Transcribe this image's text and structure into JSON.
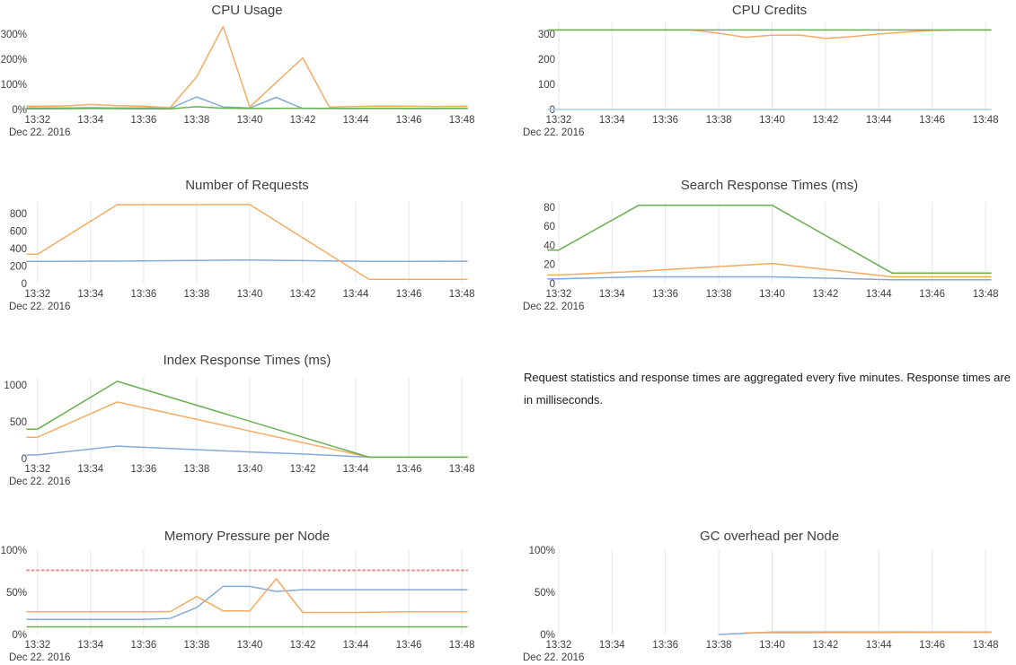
{
  "page": {
    "background": "#ffffff"
  },
  "colors": {
    "blue": "#87a8d6",
    "light_blue": "#aacee8",
    "orange": "#f5ab62",
    "green": "#68b052",
    "red_dashed": "#f28b8b",
    "grid": "#e6e6e6",
    "tick_text": "#3d3d3d",
    "title_text": "#3e3e3e"
  },
  "note": {
    "text": "Request statistics and response times are aggregated every five minutes. Response times are in milliseconds."
  },
  "x_axis": {
    "min": -0.4,
    "max": 16.2,
    "tick_values": [
      0,
      2,
      4,
      6,
      8,
      10,
      12,
      14,
      16
    ],
    "tick_labels": [
      "13:32",
      "13:34",
      "13:36",
      "13:38",
      "13:40",
      "13:42",
      "13:44",
      "13:46",
      "13:48"
    ],
    "date_label": "Dec 22. 2016"
  },
  "chart_data": [
    {
      "type": "line",
      "title": "CPU Usage",
      "grid": false,
      "ylim": [
        0,
        346
      ],
      "yticks": [
        {
          "value": 0,
          "label": "0%"
        },
        {
          "value": 100,
          "label": "100%"
        },
        {
          "value": 200,
          "label": "200%"
        },
        {
          "value": 300,
          "label": "300%"
        }
      ],
      "series": [
        {
          "name": "blue",
          "color": "#87a8d6",
          "points": [
            [
              0,
              6
            ],
            [
              1,
              6
            ],
            [
              2,
              7
            ],
            [
              3,
              6
            ],
            [
              4,
              6
            ],
            [
              5,
              4
            ],
            [
              6,
              50
            ],
            [
              7,
              10
            ],
            [
              8,
              6
            ],
            [
              9,
              48
            ],
            [
              10,
              4
            ],
            [
              11,
              4
            ],
            [
              12,
              4
            ],
            [
              13,
              5
            ],
            [
              14,
              4
            ],
            [
              15,
              4
            ],
            [
              16,
              5
            ]
          ]
        },
        {
          "name": "orange",
          "color": "#f5ab62",
          "points": [
            [
              0,
              13
            ],
            [
              1,
              14
            ],
            [
              2,
              20
            ],
            [
              3,
              15
            ],
            [
              4,
              13
            ],
            [
              5,
              7
            ],
            [
              6,
              130
            ],
            [
              7,
              330
            ],
            [
              8,
              10
            ],
            [
              10,
              205
            ],
            [
              11,
              10
            ],
            [
              12,
              12
            ],
            [
              13,
              14
            ],
            [
              14,
              13
            ],
            [
              15,
              12
            ],
            [
              16,
              13
            ]
          ]
        },
        {
          "name": "green",
          "color": "#68b052",
          "points": [
            [
              0,
              3
            ],
            [
              2,
              4
            ],
            [
              4,
              3
            ],
            [
              5,
              3
            ],
            [
              6,
              11
            ],
            [
              7,
              5
            ],
            [
              8,
              4
            ],
            [
              10,
              5
            ],
            [
              12,
              4
            ],
            [
              14,
              4
            ],
            [
              16,
              4
            ]
          ]
        }
      ]
    },
    {
      "type": "line",
      "title": "CPU Credits",
      "grid": true,
      "ylim": [
        0,
        346
      ],
      "yticks": [
        {
          "value": 0,
          "label": "0"
        },
        {
          "value": 100,
          "label": "100"
        },
        {
          "value": 200,
          "label": "200"
        },
        {
          "value": 300,
          "label": "300"
        }
      ],
      "series": [
        {
          "name": "light-blue",
          "color": "#aacee8",
          "points": [
            [
              0,
              0
            ],
            [
              16,
              0
            ]
          ]
        },
        {
          "name": "orange",
          "color": "#f5ab62",
          "points": [
            [
              0,
              316
            ],
            [
              5,
              316
            ],
            [
              6,
              303
            ],
            [
              7,
              287
            ],
            [
              8,
              295
            ],
            [
              9,
              296
            ],
            [
              10,
              283
            ],
            [
              11,
              290
            ],
            [
              12,
              300
            ],
            [
              13,
              308
            ],
            [
              14,
              314
            ],
            [
              15,
              316
            ],
            [
              16,
              316
            ]
          ]
        },
        {
          "name": "green",
          "color": "#68b052",
          "points": [
            [
              0,
              316
            ],
            [
              16,
              316
            ]
          ]
        }
      ]
    },
    {
      "type": "line",
      "title": "Number of Requests",
      "grid": true,
      "ylim": [
        0,
        935
      ],
      "yticks": [
        {
          "value": 0,
          "label": "0"
        },
        {
          "value": 200,
          "label": "200"
        },
        {
          "value": 400,
          "label": "400"
        },
        {
          "value": 600,
          "label": "600"
        },
        {
          "value": 800,
          "label": "800"
        }
      ],
      "series": [
        {
          "name": "blue",
          "color": "#87a8d6",
          "points": [
            [
              0,
              255
            ],
            [
              3,
              257
            ],
            [
              8,
              270
            ],
            [
              10,
              263
            ],
            [
              12.5,
              254
            ],
            [
              16,
              256
            ]
          ]
        },
        {
          "name": "orange",
          "color": "#f5ab62",
          "points": [
            [
              0,
              335
            ],
            [
              3,
              903
            ],
            [
              8,
              905
            ],
            [
              12.5,
              48
            ],
            [
              16,
              48
            ]
          ]
        }
      ]
    },
    {
      "type": "line",
      "title": "Search Response Times (ms)",
      "grid": true,
      "ylim": [
        0,
        85.5
      ],
      "yticks": [
        {
          "value": 0,
          "label": "0"
        },
        {
          "value": 20,
          "label": "20"
        },
        {
          "value": 40,
          "label": "40"
        },
        {
          "value": 60,
          "label": "60"
        },
        {
          "value": 80,
          "label": "80"
        }
      ],
      "series": [
        {
          "name": "blue",
          "color": "#87a8d6",
          "points": [
            [
              0,
              5
            ],
            [
              3,
              7
            ],
            [
              8,
              7
            ],
            [
              12.5,
              4
            ],
            [
              16,
              4
            ]
          ]
        },
        {
          "name": "orange",
          "color": "#f5ab62",
          "points": [
            [
              0,
              9
            ],
            [
              3,
              13
            ],
            [
              8,
              21
            ],
            [
              12.5,
              7
            ],
            [
              16,
              7
            ]
          ]
        },
        {
          "name": "green",
          "color": "#68b052",
          "points": [
            [
              0,
              35
            ],
            [
              3,
              82
            ],
            [
              8,
              82
            ],
            [
              12.5,
              11
            ],
            [
              16,
              11
            ]
          ]
        }
      ]
    },
    {
      "type": "line",
      "title": "Index Response Times (ms)",
      "grid": true,
      "ylim": [
        0,
        1110
      ],
      "yticks": [
        {
          "value": 0,
          "label": "0"
        },
        {
          "value": 500,
          "label": "500"
        },
        {
          "value": 1000,
          "label": "1000"
        }
      ],
      "series": [
        {
          "name": "blue",
          "color": "#87a8d6",
          "points": [
            [
              0,
              50
            ],
            [
              3,
              170
            ],
            [
              8,
              90
            ],
            [
              10,
              62
            ],
            [
              12.5,
              20
            ],
            [
              16,
              20
            ]
          ]
        },
        {
          "name": "orange",
          "color": "#f5ab62",
          "points": [
            [
              0,
              290
            ],
            [
              3,
              770
            ],
            [
              8,
              375
            ],
            [
              12.5,
              20
            ],
            [
              16,
              20
            ]
          ]
        },
        {
          "name": "green",
          "color": "#68b052",
          "points": [
            [
              0,
              400
            ],
            [
              3,
              1050
            ],
            [
              12.5,
              20
            ],
            [
              16,
              20
            ]
          ]
        }
      ]
    },
    {
      "type": "line",
      "title": "Memory Pressure per Node",
      "grid": true,
      "ylim": [
        0,
        101
      ],
      "yticks": [
        {
          "value": 0,
          "label": "0%"
        },
        {
          "value": 50,
          "label": "50%"
        },
        {
          "value": 100,
          "label": "100%"
        }
      ],
      "series": [
        {
          "name": "blue",
          "color": "#87a8d6",
          "points": [
            [
              0,
              18
            ],
            [
              4,
              18
            ],
            [
              5,
              19
            ],
            [
              6,
              32
            ],
            [
              7,
              57
            ],
            [
              8,
              57
            ],
            [
              9,
              51
            ],
            [
              10,
              53
            ],
            [
              16,
              53
            ]
          ]
        },
        {
          "name": "orange",
          "color": "#f5ab62",
          "points": [
            [
              0,
              27
            ],
            [
              5,
              27
            ],
            [
              6,
              45
            ],
            [
              7,
              28
            ],
            [
              8,
              28
            ],
            [
              9,
              66
            ],
            [
              10,
              26
            ],
            [
              12,
              26
            ],
            [
              14,
              27
            ],
            [
              16,
              27
            ]
          ]
        },
        {
          "name": "green",
          "color": "#68b052",
          "points": [
            [
              0,
              9
            ],
            [
              16,
              9
            ]
          ]
        },
        {
          "name": "threshold",
          "color": "#f28b8b",
          "dash": "2 3.5",
          "width": 2,
          "points": [
            [
              0,
              76
            ],
            [
              16,
              76
            ]
          ]
        }
      ]
    },
    {
      "type": "line",
      "title": "GC overhead per Node",
      "grid": true,
      "ylim": [
        0,
        101
      ],
      "yticks": [
        {
          "value": 0,
          "label": "0%"
        },
        {
          "value": 50,
          "label": "50%"
        },
        {
          "value": 100,
          "label": "100%"
        }
      ],
      "series": [
        {
          "name": "blue",
          "color": "#87a8d6",
          "points": [
            [
              6,
              0
            ],
            [
              7,
              1.5
            ],
            [
              8,
              3
            ],
            [
              16,
              3
            ]
          ]
        },
        {
          "name": "orange",
          "color": "#f5ab62",
          "points": [
            [
              7,
              2
            ],
            [
              16,
              2.5
            ]
          ]
        }
      ]
    }
  ]
}
